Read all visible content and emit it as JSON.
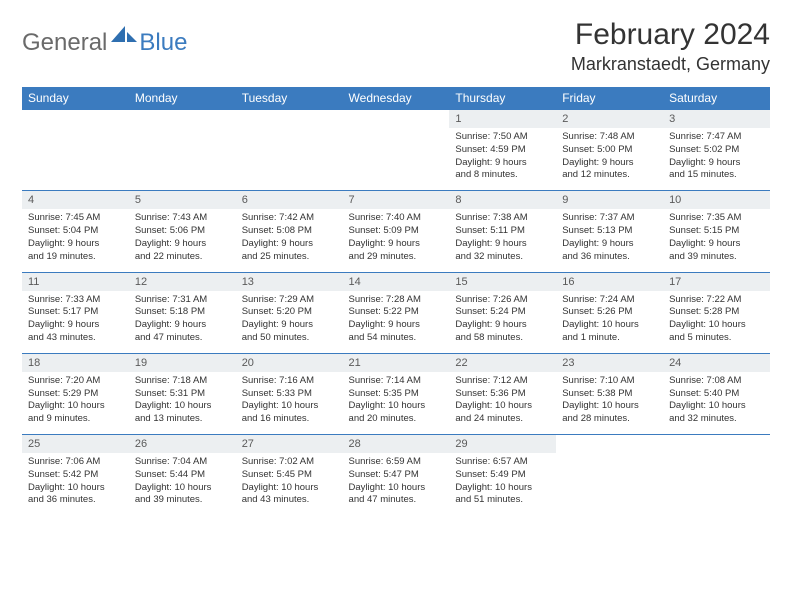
{
  "logo": {
    "text1": "General",
    "text2": "Blue"
  },
  "title": "February 2024",
  "location": "Markranstaedt, Germany",
  "colors": {
    "header_bg": "#3b7bbf",
    "header_text": "#ffffff",
    "daynum_bg": "#eceff1",
    "border": "#3b7bbf",
    "body_text": "#333333",
    "logo_gray": "#6a6a6a",
    "logo_blue": "#3b7bbf"
  },
  "dayNames": [
    "Sunday",
    "Monday",
    "Tuesday",
    "Wednesday",
    "Thursday",
    "Friday",
    "Saturday"
  ],
  "weeks": [
    [
      {
        "n": "",
        "l": [
          "",
          "",
          "",
          ""
        ]
      },
      {
        "n": "",
        "l": [
          "",
          "",
          "",
          ""
        ]
      },
      {
        "n": "",
        "l": [
          "",
          "",
          "",
          ""
        ]
      },
      {
        "n": "",
        "l": [
          "",
          "",
          "",
          ""
        ]
      },
      {
        "n": "1",
        "l": [
          "Sunrise: 7:50 AM",
          "Sunset: 4:59 PM",
          "Daylight: 9 hours",
          "and 8 minutes."
        ]
      },
      {
        "n": "2",
        "l": [
          "Sunrise: 7:48 AM",
          "Sunset: 5:00 PM",
          "Daylight: 9 hours",
          "and 12 minutes."
        ]
      },
      {
        "n": "3",
        "l": [
          "Sunrise: 7:47 AM",
          "Sunset: 5:02 PM",
          "Daylight: 9 hours",
          "and 15 minutes."
        ]
      }
    ],
    [
      {
        "n": "4",
        "l": [
          "Sunrise: 7:45 AM",
          "Sunset: 5:04 PM",
          "Daylight: 9 hours",
          "and 19 minutes."
        ]
      },
      {
        "n": "5",
        "l": [
          "Sunrise: 7:43 AM",
          "Sunset: 5:06 PM",
          "Daylight: 9 hours",
          "and 22 minutes."
        ]
      },
      {
        "n": "6",
        "l": [
          "Sunrise: 7:42 AM",
          "Sunset: 5:08 PM",
          "Daylight: 9 hours",
          "and 25 minutes."
        ]
      },
      {
        "n": "7",
        "l": [
          "Sunrise: 7:40 AM",
          "Sunset: 5:09 PM",
          "Daylight: 9 hours",
          "and 29 minutes."
        ]
      },
      {
        "n": "8",
        "l": [
          "Sunrise: 7:38 AM",
          "Sunset: 5:11 PM",
          "Daylight: 9 hours",
          "and 32 minutes."
        ]
      },
      {
        "n": "9",
        "l": [
          "Sunrise: 7:37 AM",
          "Sunset: 5:13 PM",
          "Daylight: 9 hours",
          "and 36 minutes."
        ]
      },
      {
        "n": "10",
        "l": [
          "Sunrise: 7:35 AM",
          "Sunset: 5:15 PM",
          "Daylight: 9 hours",
          "and 39 minutes."
        ]
      }
    ],
    [
      {
        "n": "11",
        "l": [
          "Sunrise: 7:33 AM",
          "Sunset: 5:17 PM",
          "Daylight: 9 hours",
          "and 43 minutes."
        ]
      },
      {
        "n": "12",
        "l": [
          "Sunrise: 7:31 AM",
          "Sunset: 5:18 PM",
          "Daylight: 9 hours",
          "and 47 minutes."
        ]
      },
      {
        "n": "13",
        "l": [
          "Sunrise: 7:29 AM",
          "Sunset: 5:20 PM",
          "Daylight: 9 hours",
          "and 50 minutes."
        ]
      },
      {
        "n": "14",
        "l": [
          "Sunrise: 7:28 AM",
          "Sunset: 5:22 PM",
          "Daylight: 9 hours",
          "and 54 minutes."
        ]
      },
      {
        "n": "15",
        "l": [
          "Sunrise: 7:26 AM",
          "Sunset: 5:24 PM",
          "Daylight: 9 hours",
          "and 58 minutes."
        ]
      },
      {
        "n": "16",
        "l": [
          "Sunrise: 7:24 AM",
          "Sunset: 5:26 PM",
          "Daylight: 10 hours",
          "and 1 minute."
        ]
      },
      {
        "n": "17",
        "l": [
          "Sunrise: 7:22 AM",
          "Sunset: 5:28 PM",
          "Daylight: 10 hours",
          "and 5 minutes."
        ]
      }
    ],
    [
      {
        "n": "18",
        "l": [
          "Sunrise: 7:20 AM",
          "Sunset: 5:29 PM",
          "Daylight: 10 hours",
          "and 9 minutes."
        ]
      },
      {
        "n": "19",
        "l": [
          "Sunrise: 7:18 AM",
          "Sunset: 5:31 PM",
          "Daylight: 10 hours",
          "and 13 minutes."
        ]
      },
      {
        "n": "20",
        "l": [
          "Sunrise: 7:16 AM",
          "Sunset: 5:33 PM",
          "Daylight: 10 hours",
          "and 16 minutes."
        ]
      },
      {
        "n": "21",
        "l": [
          "Sunrise: 7:14 AM",
          "Sunset: 5:35 PM",
          "Daylight: 10 hours",
          "and 20 minutes."
        ]
      },
      {
        "n": "22",
        "l": [
          "Sunrise: 7:12 AM",
          "Sunset: 5:36 PM",
          "Daylight: 10 hours",
          "and 24 minutes."
        ]
      },
      {
        "n": "23",
        "l": [
          "Sunrise: 7:10 AM",
          "Sunset: 5:38 PM",
          "Daylight: 10 hours",
          "and 28 minutes."
        ]
      },
      {
        "n": "24",
        "l": [
          "Sunrise: 7:08 AM",
          "Sunset: 5:40 PM",
          "Daylight: 10 hours",
          "and 32 minutes."
        ]
      }
    ],
    [
      {
        "n": "25",
        "l": [
          "Sunrise: 7:06 AM",
          "Sunset: 5:42 PM",
          "Daylight: 10 hours",
          "and 36 minutes."
        ]
      },
      {
        "n": "26",
        "l": [
          "Sunrise: 7:04 AM",
          "Sunset: 5:44 PM",
          "Daylight: 10 hours",
          "and 39 minutes."
        ]
      },
      {
        "n": "27",
        "l": [
          "Sunrise: 7:02 AM",
          "Sunset: 5:45 PM",
          "Daylight: 10 hours",
          "and 43 minutes."
        ]
      },
      {
        "n": "28",
        "l": [
          "Sunrise: 6:59 AM",
          "Sunset: 5:47 PM",
          "Daylight: 10 hours",
          "and 47 minutes."
        ]
      },
      {
        "n": "29",
        "l": [
          "Sunrise: 6:57 AM",
          "Sunset: 5:49 PM",
          "Daylight: 10 hours",
          "and 51 minutes."
        ]
      },
      {
        "n": "",
        "l": [
          "",
          "",
          "",
          ""
        ]
      },
      {
        "n": "",
        "l": [
          "",
          "",
          "",
          ""
        ]
      }
    ]
  ]
}
